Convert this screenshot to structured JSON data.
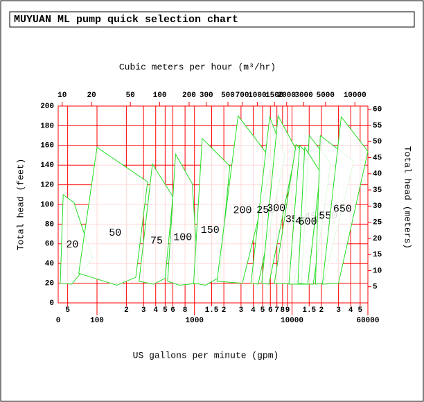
{
  "chart_data": {
    "type": "region",
    "title": "MUYUAN  ML pump quick selection chart",
    "x_label": "US gallons per minute (gpm)",
    "x2_label": "Cubic meters per hour (m³/hr)",
    "y_label": "Total head (feet)",
    "y2_label": "Total head (meters)",
    "x_origin_label": "0",
    "log_x": true,
    "grid": true,
    "grid_color": "#ff0000",
    "region_color": "#22dd22",
    "xlim": [
      40,
      60000
    ],
    "xticks": [
      {
        "value": 50,
        "label": "5"
      },
      {
        "value": 200,
        "label": "2"
      },
      {
        "value": 300,
        "label": "3"
      },
      {
        "value": 400,
        "label": "4"
      },
      {
        "value": 500,
        "label": "5"
      },
      {
        "value": 600,
        "label": "6"
      },
      {
        "value": 800,
        "label": "8"
      },
      {
        "value": 1500,
        "label": "1.5"
      },
      {
        "value": 2000,
        "label": "2"
      },
      {
        "value": 3000,
        "label": "3"
      },
      {
        "value": 4000,
        "label": "4"
      },
      {
        "value": 5000,
        "label": "5"
      },
      {
        "value": 6000,
        "label": "6"
      },
      {
        "value": 7000,
        "label": "7"
      },
      {
        "value": 8000,
        "label": "8"
      },
      {
        "value": 9000,
        "label": "9"
      },
      {
        "value": 15000,
        "label": "1.5"
      },
      {
        "value": 20000,
        "label": "2"
      },
      {
        "value": 30000,
        "label": "3"
      },
      {
        "value": 40000,
        "label": "4"
      },
      {
        "value": 50000,
        "label": "5"
      }
    ],
    "xticks_major": [
      100,
      1000,
      10000,
      60000
    ],
    "x2lim": [
      9.1,
      13600
    ],
    "x2ticks": [
      10,
      20,
      50,
      100,
      200,
      300,
      500,
      700,
      1000,
      1500,
      2000,
      3000,
      5000,
      10000
    ],
    "ylim": [
      0,
      200
    ],
    "yticks": [
      0,
      20,
      40,
      60,
      80,
      100,
      120,
      140,
      160,
      180,
      200
    ],
    "y2lim": [
      0,
      61
    ],
    "y2ticks": [
      5,
      10,
      15,
      20,
      25,
      30,
      35,
      40,
      45,
      50,
      55,
      60
    ],
    "series": [
      {
        "name": "20",
        "x": [
          42,
          45,
          58,
          90,
          55
        ],
        "y": [
          20,
          110,
          102,
          45,
          19
        ]
      },
      {
        "name": "50",
        "x": [
          65,
          100,
          330,
          250,
          160
        ],
        "y": [
          30,
          158,
          123,
          26,
          18
        ]
      },
      {
        "name": "75",
        "x": [
          270,
          370,
          600,
          500,
          380
        ],
        "y": [
          22,
          141,
          108,
          25,
          19
        ]
      },
      {
        "name": "100",
        "x": [
          530,
          640,
          950,
          1100,
          700
        ],
        "y": [
          22,
          151,
          121,
          20,
          18
        ]
      },
      {
        "name": "150",
        "x": [
          980,
          1200,
          2300,
          1800,
          1300
        ],
        "y": [
          20,
          167,
          139,
          26,
          18
        ]
      },
      {
        "name": "200",
        "x": [
          1700,
          2800,
          6300,
          3100
        ],
        "y": [
          22,
          190,
          144,
          20
        ]
      },
      {
        "name": "250",
        "x": [
          3800,
          5900,
          8400,
          4500
        ],
        "y": [
          20,
          189,
          149,
          19
        ]
      },
      {
        "name": "300",
        "x": [
          4900,
          7200,
          11000,
          5800
        ],
        "y": [
          20,
          190,
          156,
          19
        ]
      },
      {
        "name": "350",
        "x": [
          6600,
          11000,
          17000,
          10500
        ],
        "y": [
          20,
          161,
          139,
          19
        ]
      },
      {
        "name": "400",
        "x": [
          9300,
          12000,
          20500,
          14500
        ],
        "y": [
          19,
          160,
          135,
          19
        ]
      },
      {
        "name": "450",
        "x": [
          12500,
          15000,
          25000,
          16500
        ],
        "y": [
          19,
          170,
          142,
          19
        ]
      },
      {
        "name": "500",
        "x": [
          11500,
          13500,
          19500,
          14500
        ],
        "y": [
          20,
          158,
          133,
          19
        ]
      },
      {
        "name": "550",
        "x": [
          17400,
          19500,
          43000,
          21000
        ],
        "y": [
          19,
          170,
          144,
          20
        ]
      },
      {
        "name": "650",
        "x": [
          20500,
          32000,
          60000,
          30000
        ],
        "y": [
          19,
          189,
          154,
          20
        ]
      }
    ]
  }
}
